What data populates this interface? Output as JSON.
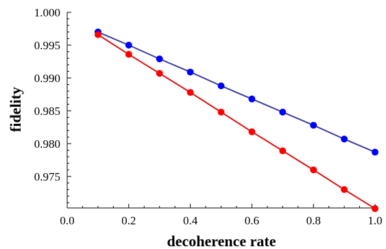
{
  "chart_data": {
    "type": "line",
    "xlabel": "decoherence rate",
    "ylabel": "fidelity",
    "xlim": [
      0.0,
      1.0
    ],
    "ylim": [
      0.9702,
      1.0
    ],
    "x_ticks": [
      "0.0",
      "0.2",
      "0.4",
      "0.6",
      "0.8",
      "1.0"
    ],
    "y_ticks": [
      "0.975",
      "0.980",
      "0.985",
      "0.990",
      "0.995",
      "1.000"
    ],
    "x": [
      0.1,
      0.2,
      0.3,
      0.4,
      0.5,
      0.6,
      0.7,
      0.8,
      0.9,
      1.0
    ],
    "series": [
      {
        "color": "#0000ff",
        "line_color": "#3a3aa0",
        "values": [
          0.997,
          0.995,
          0.9929,
          0.9909,
          0.9888,
          0.9868,
          0.9848,
          0.9828,
          0.9807,
          0.9787
        ]
      },
      {
        "color": "#ff0000",
        "line_color": "#e01010",
        "values": [
          0.9966,
          0.9936,
          0.9907,
          0.9878,
          0.9848,
          0.9818,
          0.9789,
          0.976,
          0.973,
          0.9701
        ]
      }
    ],
    "grid": false,
    "legend": "none"
  }
}
